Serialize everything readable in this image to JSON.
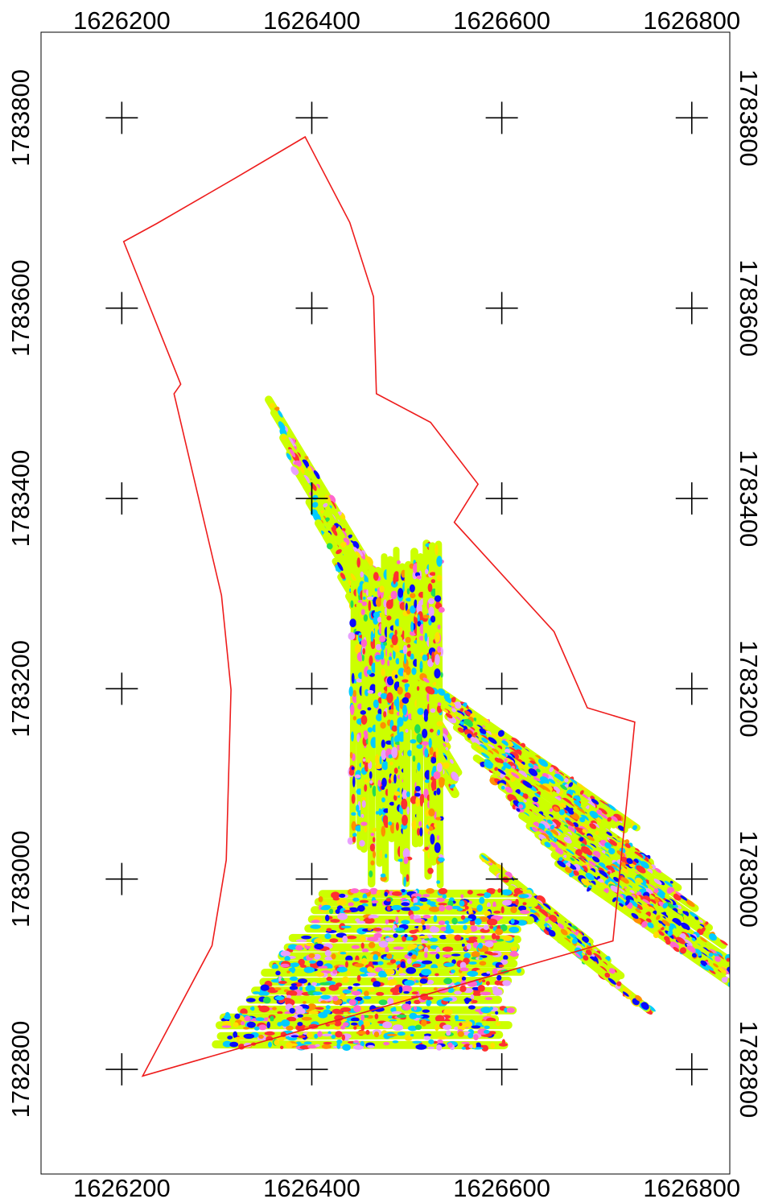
{
  "map": {
    "x_axis": {
      "labels": [
        "1626200",
        "1626400",
        "1626600",
        "1626800"
      ],
      "values": [
        1626200,
        1626400,
        1626600,
        1626800
      ],
      "range": [
        1626115,
        1626840
      ]
    },
    "y_axis": {
      "labels": [
        "1783800",
        "1783600",
        "1783400",
        "1783200",
        "1783000",
        "1782800"
      ],
      "values": [
        1783800,
        1783600,
        1783400,
        1783200,
        1783000,
        1782800
      ],
      "range": [
        1782690,
        1783890
      ]
    },
    "colors": {
      "boundary": "#ee1c1c",
      "frame": "#000000",
      "survey_base": "#ccff00",
      "anomaly_palette": [
        "#00ccff",
        "#0a0aff",
        "#ff3030",
        "#ff66cc",
        "#e8a0ff",
        "#ffe000",
        "#ff9000",
        "#22dd55"
      ]
    },
    "boundary_polygon": [
      [
        1626393,
        1783780
      ],
      [
        1626320,
        1783737
      ],
      [
        1626237,
        1783689
      ],
      [
        1626202,
        1783670
      ],
      [
        1626262,
        1783520
      ],
      [
        1626255,
        1783510
      ],
      [
        1626305,
        1783298
      ],
      [
        1626315,
        1783199
      ],
      [
        1626310,
        1783020
      ],
      [
        1626295,
        1782930
      ],
      [
        1626222,
        1782793
      ],
      [
        1626717,
        1782935
      ],
      [
        1626740,
        1783165
      ],
      [
        1626690,
        1783180
      ],
      [
        1626655,
        1783260
      ],
      [
        1626550,
        1783375
      ],
      [
        1626575,
        1783415
      ],
      [
        1626525,
        1783480
      ],
      [
        1626468,
        1783510
      ],
      [
        1626465,
        1783612
      ],
      [
        1626440,
        1783690
      ]
    ]
  }
}
